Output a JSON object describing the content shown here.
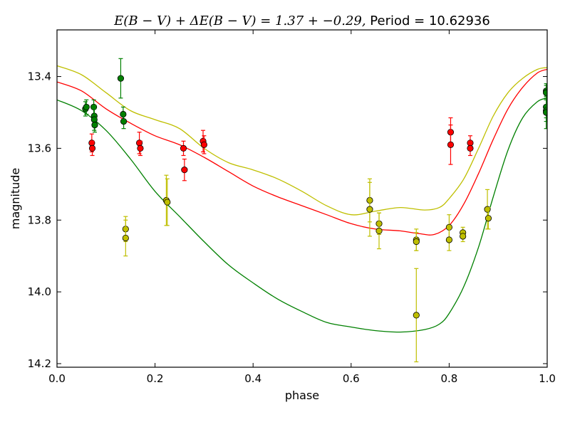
{
  "chart_data": {
    "type": "scatter",
    "title_math": "E(B − V) + ΔE(B − V) = 1.37 + −0.29,",
    "title_text": " Period = 10.62936",
    "xlabel": "phase",
    "ylabel": "magnitude",
    "xlim": [
      0.0,
      1.0
    ],
    "ylim": [
      14.21,
      13.27
    ],
    "y_inverted": true,
    "grid": false,
    "x_ticks": [
      "0.0",
      "0.2",
      "0.4",
      "0.6",
      "0.8",
      "1.0"
    ],
    "y_ticks": [
      "13.4",
      "13.6",
      "13.8",
      "14.0",
      "14.2"
    ],
    "series": [
      {
        "color": "#008000",
        "curve": [
          [
            0.0,
            13.465
          ],
          [
            0.05,
            13.495
          ],
          [
            0.1,
            13.55
          ],
          [
            0.15,
            13.63
          ],
          [
            0.2,
            13.72
          ],
          [
            0.25,
            13.79
          ],
          [
            0.3,
            13.86
          ],
          [
            0.35,
            13.925
          ],
          [
            0.4,
            13.975
          ],
          [
            0.45,
            14.02
          ],
          [
            0.5,
            14.055
          ],
          [
            0.55,
            14.085
          ],
          [
            0.6,
            14.098
          ],
          [
            0.65,
            14.108
          ],
          [
            0.7,
            14.112
          ],
          [
            0.75,
            14.105
          ],
          [
            0.78,
            14.09
          ],
          [
            0.8,
            14.06
          ],
          [
            0.83,
            13.985
          ],
          [
            0.86,
            13.875
          ],
          [
            0.89,
            13.735
          ],
          [
            0.92,
            13.605
          ],
          [
            0.95,
            13.515
          ],
          [
            0.98,
            13.47
          ],
          [
            1.0,
            13.46
          ]
        ],
        "points": [
          {
            "x": 0.058,
            "y": 13.49,
            "err": 0.02
          },
          {
            "x": 0.06,
            "y": 13.485,
            "err": 0.02
          },
          {
            "x": 0.075,
            "y": 13.485,
            "err": 0.02
          },
          {
            "x": 0.076,
            "y": 13.51,
            "err": 0.03
          },
          {
            "x": 0.076,
            "y": 13.52,
            "err": 0.03
          },
          {
            "x": 0.077,
            "y": 13.535,
            "err": 0.02
          },
          {
            "x": 0.13,
            "y": 13.405,
            "err": 0.055
          },
          {
            "x": 0.135,
            "y": 13.505,
            "err": 0.02
          },
          {
            "x": 0.136,
            "y": 13.525,
            "err": 0.02
          },
          {
            "x": 0.998,
            "y": 13.44,
            "err": 0.02
          },
          {
            "x": 0.998,
            "y": 13.445,
            "err": 0.02
          },
          {
            "x": 0.998,
            "y": 13.485,
            "err": 0.03
          },
          {
            "x": 0.998,
            "y": 13.495,
            "err": 0.03
          },
          {
            "x": 0.998,
            "y": 13.5,
            "err": 0.045
          }
        ]
      },
      {
        "color": "#ff0000",
        "curve": [
          [
            0.0,
            13.415
          ],
          [
            0.05,
            13.44
          ],
          [
            0.1,
            13.49
          ],
          [
            0.15,
            13.53
          ],
          [
            0.2,
            13.565
          ],
          [
            0.25,
            13.59
          ],
          [
            0.3,
            13.625
          ],
          [
            0.35,
            13.665
          ],
          [
            0.4,
            13.705
          ],
          [
            0.45,
            13.735
          ],
          [
            0.5,
            13.76
          ],
          [
            0.55,
            13.785
          ],
          [
            0.6,
            13.81
          ],
          [
            0.65,
            13.825
          ],
          [
            0.7,
            13.83
          ],
          [
            0.74,
            13.838
          ],
          [
            0.77,
            13.84
          ],
          [
            0.8,
            13.815
          ],
          [
            0.83,
            13.755
          ],
          [
            0.86,
            13.67
          ],
          [
            0.89,
            13.575
          ],
          [
            0.92,
            13.49
          ],
          [
            0.95,
            13.43
          ],
          [
            0.98,
            13.39
          ],
          [
            1.0,
            13.38
          ]
        ],
        "points": [
          {
            "x": 0.071,
            "y": 13.585,
            "err": 0.025
          },
          {
            "x": 0.072,
            "y": 13.6,
            "err": 0.02
          },
          {
            "x": 0.168,
            "y": 13.585,
            "err": 0.03
          },
          {
            "x": 0.17,
            "y": 13.6,
            "err": 0.02
          },
          {
            "x": 0.258,
            "y": 13.6,
            "err": 0.02
          },
          {
            "x": 0.26,
            "y": 13.66,
            "err": 0.03
          },
          {
            "x": 0.298,
            "y": 13.58,
            "err": 0.03
          },
          {
            "x": 0.3,
            "y": 13.59,
            "err": 0.025
          },
          {
            "x": 0.803,
            "y": 13.555,
            "err": 0.04
          },
          {
            "x": 0.803,
            "y": 13.59,
            "err": 0.055
          },
          {
            "x": 0.843,
            "y": 13.585,
            "err": 0.02
          },
          {
            "x": 0.843,
            "y": 13.6,
            "err": 0.02
          }
        ]
      },
      {
        "color": "#bfbf00",
        "curve": [
          [
            0.0,
            13.37
          ],
          [
            0.05,
            13.395
          ],
          [
            0.1,
            13.445
          ],
          [
            0.15,
            13.495
          ],
          [
            0.2,
            13.52
          ],
          [
            0.25,
            13.545
          ],
          [
            0.3,
            13.6
          ],
          [
            0.35,
            13.64
          ],
          [
            0.4,
            13.66
          ],
          [
            0.45,
            13.685
          ],
          [
            0.5,
            13.72
          ],
          [
            0.55,
            13.76
          ],
          [
            0.6,
            13.785
          ],
          [
            0.65,
            13.775
          ],
          [
            0.7,
            13.765
          ],
          [
            0.75,
            13.772
          ],
          [
            0.78,
            13.765
          ],
          [
            0.8,
            13.74
          ],
          [
            0.83,
            13.685
          ],
          [
            0.86,
            13.6
          ],
          [
            0.89,
            13.51
          ],
          [
            0.92,
            13.445
          ],
          [
            0.95,
            13.405
          ],
          [
            0.98,
            13.38
          ],
          [
            1.0,
            13.375
          ]
        ],
        "points": [
          {
            "x": 0.14,
            "y": 13.825,
            "err": 0.035
          },
          {
            "x": 0.14,
            "y": 13.85,
            "err": 0.05
          },
          {
            "x": 0.223,
            "y": 13.745,
            "err": 0.07
          },
          {
            "x": 0.225,
            "y": 13.75,
            "err": 0.065
          },
          {
            "x": 0.638,
            "y": 13.745,
            "err": 0.06
          },
          {
            "x": 0.638,
            "y": 13.77,
            "err": 0.075
          },
          {
            "x": 0.657,
            "y": 13.81,
            "err": 0.03
          },
          {
            "x": 0.657,
            "y": 13.83,
            "err": 0.05
          },
          {
            "x": 0.733,
            "y": 13.855,
            "err": 0.03
          },
          {
            "x": 0.733,
            "y": 13.86,
            "err": 0.025
          },
          {
            "x": 0.733,
            "y": 14.065,
            "err": 0.13
          },
          {
            "x": 0.8,
            "y": 13.82,
            "err": 0.035
          },
          {
            "x": 0.8,
            "y": 13.855,
            "err": 0.03
          },
          {
            "x": 0.828,
            "y": 13.835,
            "err": 0.015
          },
          {
            "x": 0.828,
            "y": 13.845,
            "err": 0.015
          },
          {
            "x": 0.878,
            "y": 13.77,
            "err": 0.055
          },
          {
            "x": 0.88,
            "y": 13.795,
            "err": 0.03
          }
        ]
      }
    ]
  }
}
